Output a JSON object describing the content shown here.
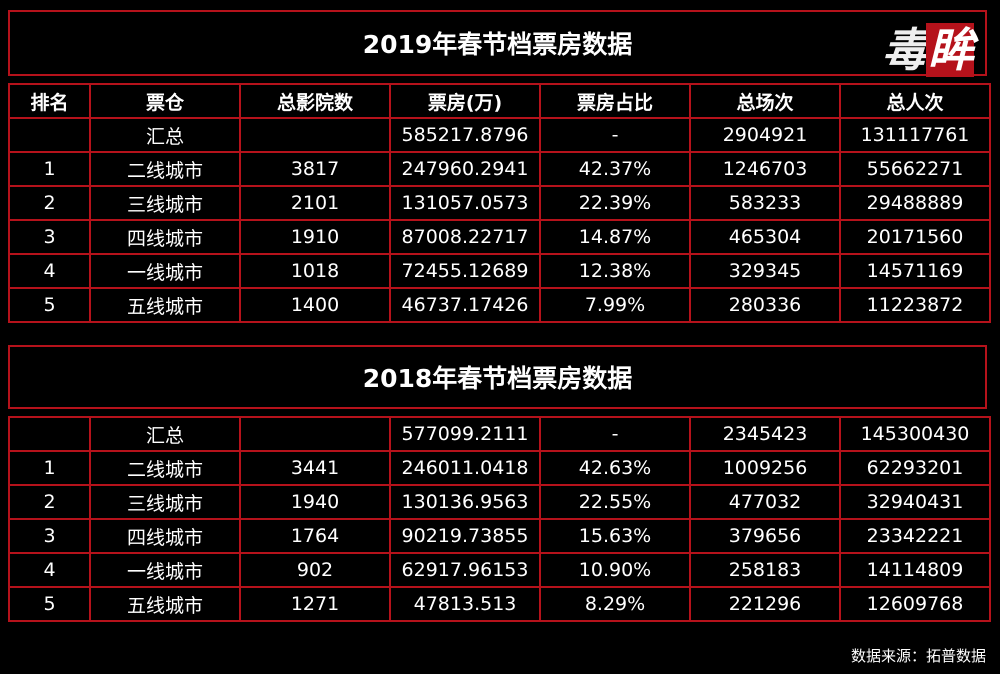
{
  "colors": {
    "background": "#000000",
    "border": "#b5121b",
    "text": "#ffffff"
  },
  "logo": {
    "part1": "毒",
    "part2": "眸"
  },
  "source_label": "数据来源：拓普数据",
  "headers": [
    "排名",
    "票仓",
    "总影院数",
    "票房(万)",
    "票房占比",
    "总场次",
    "总人次"
  ],
  "sections": [
    {
      "title": "2019年春节档票房数据",
      "rows": [
        [
          "",
          "汇总",
          "",
          "585217.8796",
          "-",
          "2904921",
          "131117761"
        ],
        [
          "1",
          "二线城市",
          "3817",
          "247960.2941",
          "42.37%",
          "1246703",
          "55662271"
        ],
        [
          "2",
          "三线城市",
          "2101",
          "131057.0573",
          "22.39%",
          "583233",
          "29488889"
        ],
        [
          "3",
          "四线城市",
          "1910",
          "87008.22717",
          "14.87%",
          "465304",
          "20171560"
        ],
        [
          "4",
          "一线城市",
          "1018",
          "72455.12689",
          "12.38%",
          "329345",
          "14571169"
        ],
        [
          "5",
          "五线城市",
          "1400",
          "46737.17426",
          "7.99%",
          "280336",
          "11223872"
        ]
      ]
    },
    {
      "title": "2018年春节档票房数据",
      "rows": [
        [
          "",
          "汇总",
          "",
          "577099.2111",
          "-",
          "2345423",
          "145300430"
        ],
        [
          "1",
          "二线城市",
          "3441",
          "246011.0418",
          "42.63%",
          "1009256",
          "62293201"
        ],
        [
          "2",
          "三线城市",
          "1940",
          "130136.9563",
          "22.55%",
          "477032",
          "32940431"
        ],
        [
          "3",
          "四线城市",
          "1764",
          "90219.73855",
          "15.63%",
          "379656",
          "23342221"
        ],
        [
          "4",
          "一线城市",
          "902",
          "62917.96153",
          "10.90%",
          "258183",
          "14114809"
        ],
        [
          "5",
          "五线城市",
          "1271",
          "47813.513",
          "8.29%",
          "221296",
          "12609768"
        ]
      ]
    }
  ],
  "chart_data": [
    {
      "type": "table",
      "title": "2019年春节档票房数据",
      "columns": [
        "排名",
        "票仓",
        "总影院数",
        "票房(万)",
        "票房占比",
        "总场次",
        "总人次"
      ],
      "rows": [
        [
          "",
          "汇总",
          "",
          "585217.8796",
          "-",
          "2904921",
          "131117761"
        ],
        [
          "1",
          "二线城市",
          "3817",
          "247960.2941",
          "42.37%",
          "1246703",
          "55662271"
        ],
        [
          "2",
          "三线城市",
          "2101",
          "131057.0573",
          "22.39%",
          "583233",
          "29488889"
        ],
        [
          "3",
          "四线城市",
          "1910",
          "87008.22717",
          "14.87%",
          "465304",
          "20171560"
        ],
        [
          "4",
          "一线城市",
          "1018",
          "72455.12689",
          "12.38%",
          "329345",
          "14571169"
        ],
        [
          "5",
          "五线城市",
          "1400",
          "46737.17426",
          "7.99%",
          "280336",
          "11223872"
        ]
      ]
    },
    {
      "type": "table",
      "title": "2018年春节档票房数据",
      "columns": [
        "排名",
        "票仓",
        "总影院数",
        "票房(万)",
        "票房占比",
        "总场次",
        "总人次"
      ],
      "rows": [
        [
          "",
          "汇总",
          "",
          "577099.2111",
          "-",
          "2345423",
          "145300430"
        ],
        [
          "1",
          "二线城市",
          "3441",
          "246011.0418",
          "42.63%",
          "1009256",
          "62293201"
        ],
        [
          "2",
          "三线城市",
          "1940",
          "130136.9563",
          "22.55%",
          "477032",
          "32940431"
        ],
        [
          "3",
          "四线城市",
          "1764",
          "90219.73855",
          "15.63%",
          "379656",
          "23342221"
        ],
        [
          "4",
          "一线城市",
          "902",
          "62917.96153",
          "10.90%",
          "258183",
          "14114809"
        ],
        [
          "5",
          "五线城市",
          "1271",
          "47813.513",
          "8.29%",
          "221296",
          "12609768"
        ]
      ]
    }
  ]
}
